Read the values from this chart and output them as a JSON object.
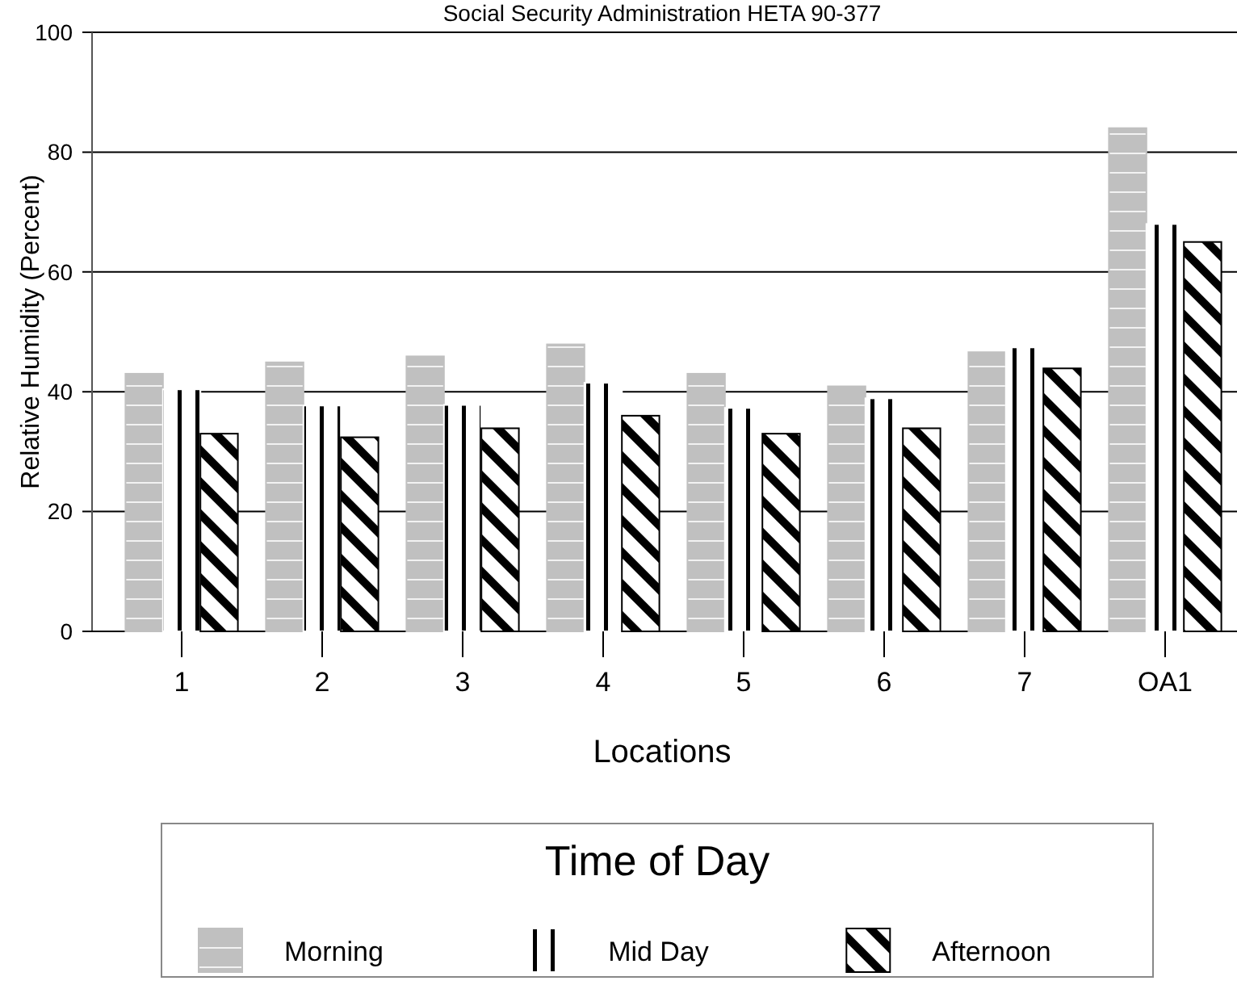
{
  "chart_data": {
    "type": "bar",
    "title": "Social Security Administration HETA 90-377",
    "xlabel": "Locations",
    "ylabel": "Relative Humidity (Percent)",
    "legend_title": "Time of Day",
    "categories": [
      "1",
      "2",
      "3",
      "4",
      "5",
      "6",
      "7",
      "OA1"
    ],
    "series": [
      {
        "name": "Morning",
        "color": "#c0c0c0",
        "values": [
          43,
          44.9,
          45.9,
          47.9,
          43,
          40.9,
          46.6,
          84
        ]
      },
      {
        "name": "Mid Day",
        "color": "#ffffff",
        "values": [
          40.4,
          37.7,
          37.8,
          41.5,
          37.3,
          38.9,
          47.4,
          68
        ]
      },
      {
        "name": "Afternoon",
        "color": "#000000",
        "values": [
          33,
          32.4,
          33.9,
          36,
          33,
          33.9,
          43.9,
          65
        ]
      }
    ],
    "ylim": [
      0,
      100
    ],
    "yticks": [
      0,
      20,
      40,
      60,
      80,
      100
    ],
    "grid": "y",
    "legend": "bottom"
  }
}
